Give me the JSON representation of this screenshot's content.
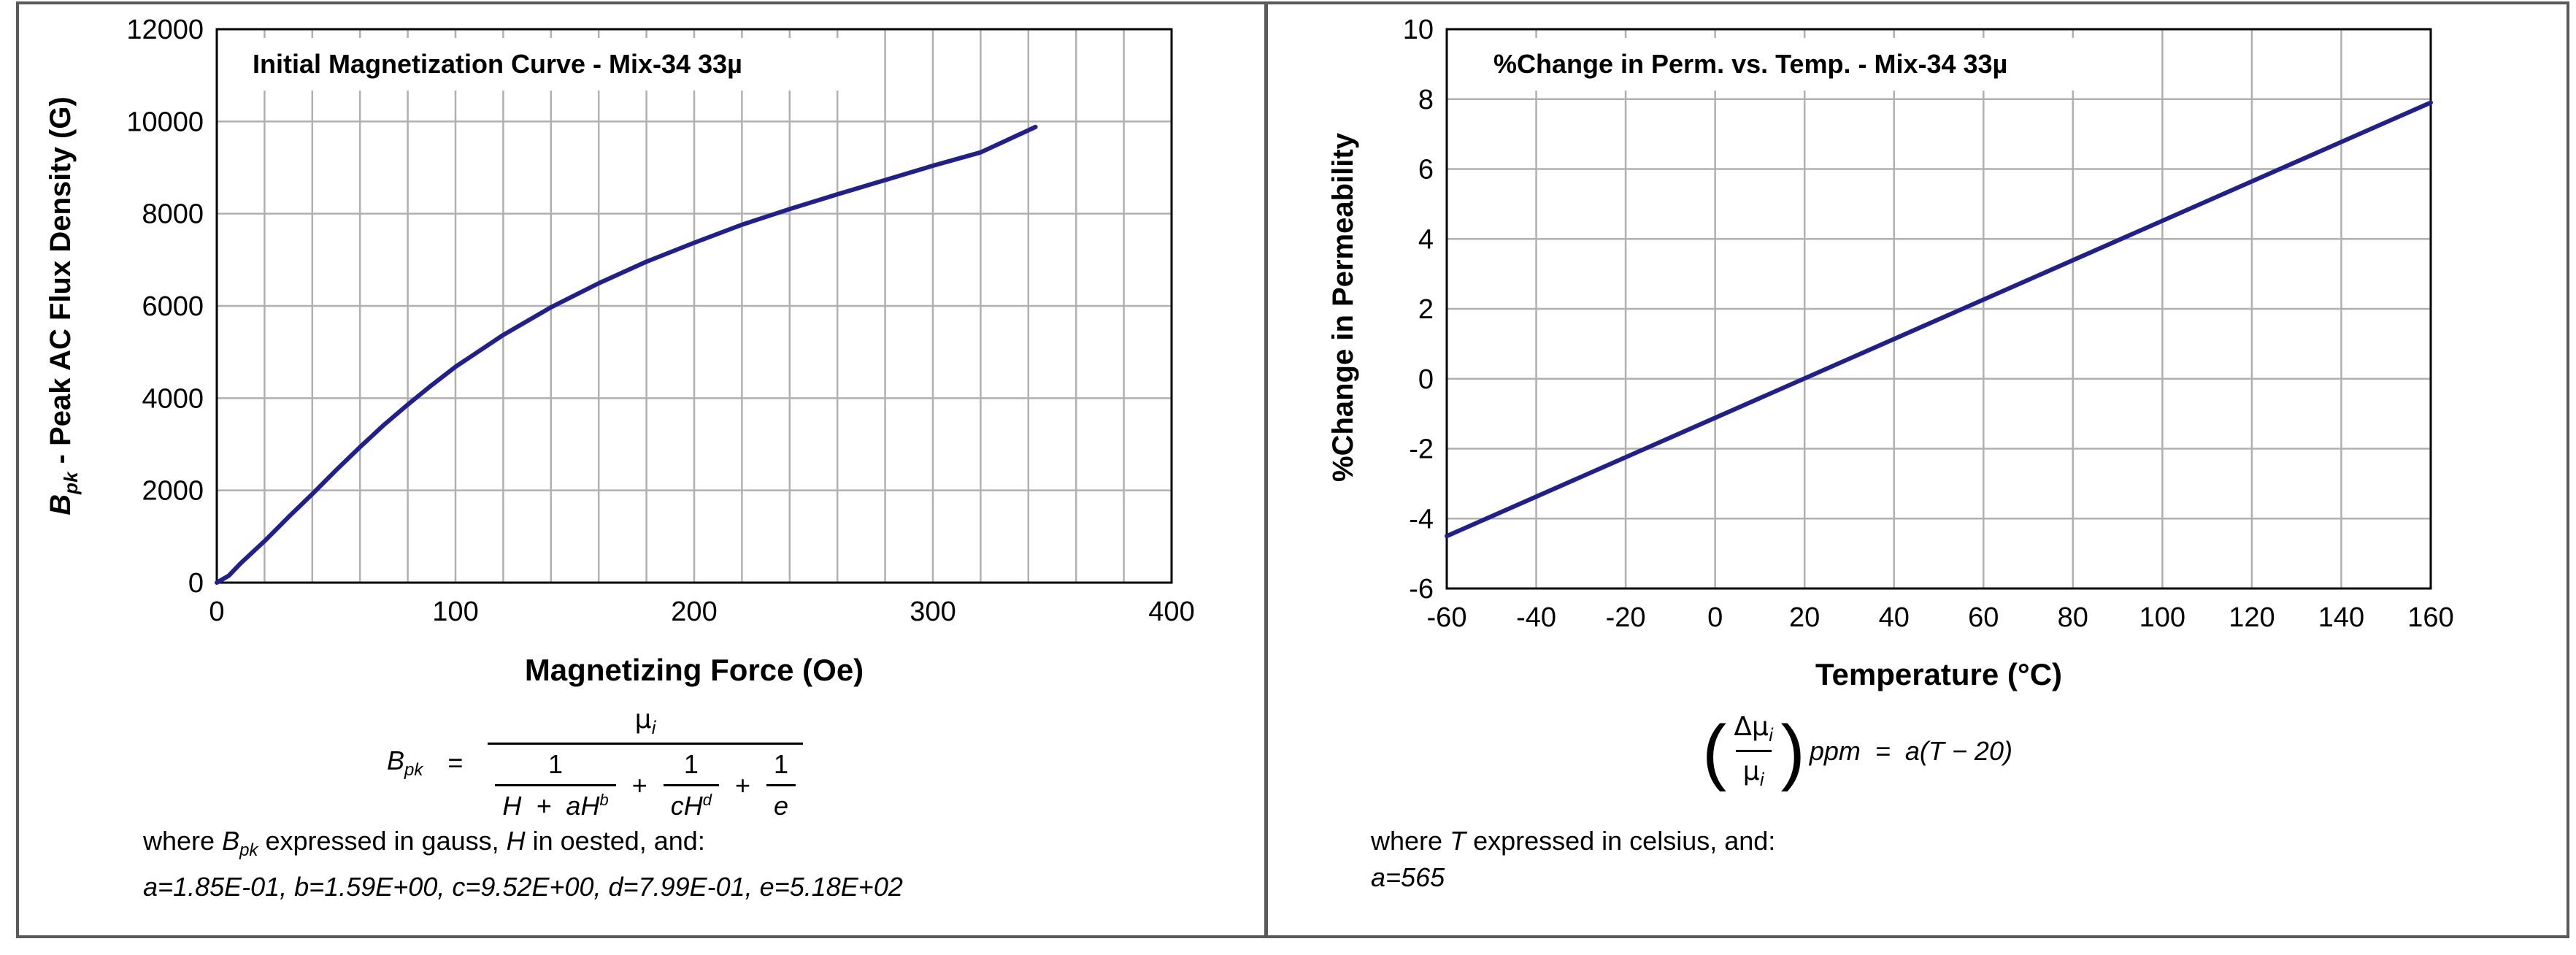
{
  "colors": {
    "curve": "#1f1f8f",
    "grid": "#b0b0b0",
    "axis": "#000000",
    "border": "#5a5a5a"
  },
  "chart_data": [
    {
      "type": "line",
      "title": "Initial Magnetization Curve - Mix-34  33µ",
      "xlabel": "Magnetizing Force (Oe)",
      "ylabel": "Peak AC Flux Density (G)",
      "ylabel_symbol": "B",
      "ylabel_sub": "pk",
      "ylabel_rest": " - Peak AC Flux Density (G)",
      "xlim": [
        0,
        400
      ],
      "ylim": [
        0,
        12000
      ],
      "xticks": [
        "0",
        "100",
        "200",
        "300",
        "400"
      ],
      "yticks": [
        "0",
        "2000",
        "4000",
        "6000",
        "8000",
        "10000",
        "12000"
      ],
      "grid": true,
      "series": [
        {
          "x": [
            0,
            5,
            10,
            20,
            30,
            40,
            50,
            60,
            70,
            80,
            90,
            100,
            120,
            140,
            160,
            180,
            200,
            220,
            240,
            260,
            280,
            300,
            320,
            343
          ],
          "y": [
            0,
            150,
            420,
            900,
            1420,
            1920,
            2440,
            2940,
            3420,
            3860,
            4280,
            4680,
            5370,
            5970,
            6490,
            6960,
            7370,
            7760,
            8100,
            8420,
            8730,
            9040,
            9330,
            9880
          ]
        }
      ]
    },
    {
      "type": "line",
      "title": "%Change in Perm. vs. Temp. - Mix-34  33µ",
      "xlabel": "Temperature (°C)",
      "ylabel": "%Change in Permeability",
      "xlim": [
        -60,
        160
      ],
      "ylim": [
        -6,
        10
      ],
      "xticks": [
        "-60",
        "-40",
        "-20",
        "0",
        "20",
        "40",
        "60",
        "80",
        "100",
        "120",
        "140",
        "160"
      ],
      "yticks": [
        "-6",
        "-4",
        "-2",
        "0",
        "2",
        "4",
        "6",
        "8",
        "10"
      ],
      "grid": true,
      "series": [
        {
          "x": [
            -60,
            160
          ],
          "y": [
            -4.5,
            7.9
          ]
        }
      ]
    }
  ],
  "equations": {
    "left": {
      "lhs": "B",
      "lhs_sub": "pk",
      "equals": "=",
      "numerator": "µ",
      "numerator_sub": "i",
      "term1_num": "1",
      "term1_den": "H  +  aH",
      "term1_exp": "b",
      "plus": "+",
      "term2_num": "1",
      "term2_den": "cH",
      "term2_exp": "d",
      "term3_num": "1",
      "term3_den": "e",
      "where_a": "where ",
      "where_b": "B",
      "where_b_sub": "pk",
      "where_c": " expressed in gauss, ",
      "where_d": "H",
      "where_e": " in oested, and:",
      "constants": "a=1.85E-01,  b=1.59E+00,  c=9.52E+00,  d=7.99E-01,  e=5.18E+02"
    },
    "right": {
      "lparen": "(",
      "rparen": ")",
      "num": "Δµ",
      "num_sub": "i",
      "den": "µ",
      "den_sub": "i",
      "rhs": "ppm  =  a(T − 20)",
      "where_a": "where ",
      "where_t": "T",
      "where_c": " expressed in celsius, and:",
      "constants": "a=565"
    }
  }
}
